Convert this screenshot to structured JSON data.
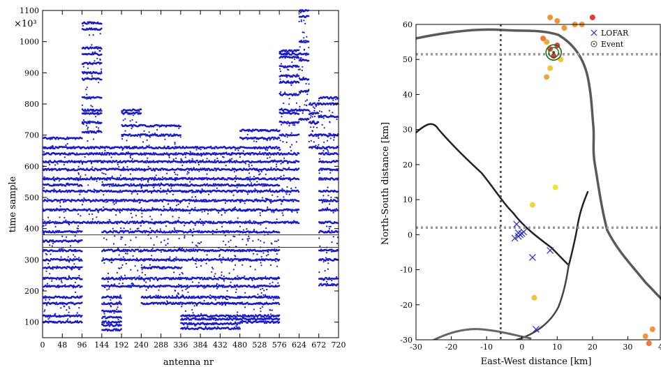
{
  "chart_data": [
    {
      "type": "scatter",
      "xlabel": "antenna nr",
      "ylabel": "time sample",
      "y_multiplier": "×10³",
      "xlim": [
        0,
        720
      ],
      "ylim": [
        50,
        1100
      ],
      "x_ticks": [
        "0",
        "48",
        "96",
        "144",
        "192",
        "240",
        "288",
        "336",
        "384",
        "432",
        "480",
        "528",
        "576",
        "624",
        "672",
        "720"
      ],
      "y_ticks": [
        "100",
        "200",
        "300",
        "400",
        "500",
        "600",
        "700",
        "800",
        "900",
        "1000",
        "1100"
      ],
      "point_color": "#1515d6",
      "horizontal_lines": [
        340,
        380
      ],
      "band_levels": [
        100,
        120,
        160,
        180,
        215,
        240,
        275,
        300,
        330,
        360,
        390,
        420,
        460,
        490,
        520,
        540,
        560,
        590,
        615,
        640,
        660
      ],
      "antenna_groups": [
        {
          "x": [
            0,
            96
          ],
          "levels": [
            100,
            120,
            160,
            180,
            215,
            240,
            275,
            300,
            330,
            360,
            390,
            420,
            460,
            490,
            520,
            540,
            560,
            590,
            615,
            640,
            660,
            690
          ]
        },
        {
          "x": [
            96,
            144
          ],
          "levels": [
            710,
            740,
            770,
            780,
            820,
            880,
            900,
            930,
            960,
            980,
            1040,
            1060,
            420,
            460,
            490,
            520,
            560,
            590,
            615,
            640,
            660
          ]
        },
        {
          "x": [
            144,
            192
          ],
          "levels": [
            75,
            90,
            100,
            115,
            135,
            160,
            180,
            215,
            240,
            300,
            330,
            390,
            420,
            460,
            490,
            520,
            540,
            560,
            590,
            615,
            640,
            660
          ]
        },
        {
          "x": [
            192,
            240
          ],
          "levels": [
            700,
            730,
            770,
            780,
            215,
            240,
            300,
            330,
            390,
            420,
            460,
            490,
            520,
            540,
            560,
            590,
            615,
            640,
            660
          ]
        },
        {
          "x": [
            240,
            336
          ],
          "levels": [
            160,
            180,
            215,
            240,
            275,
            300,
            330,
            390,
            420,
            460,
            490,
            520,
            540,
            560,
            590,
            615,
            640,
            660,
            700,
            730
          ]
        },
        {
          "x": [
            336,
            480
          ],
          "levels": [
            80,
            95,
            110,
            120,
            160,
            180,
            215,
            240,
            300,
            330,
            390,
            420,
            460,
            490,
            520,
            540,
            560,
            590,
            615,
            640,
            660
          ]
        },
        {
          "x": [
            480,
            576
          ],
          "levels": [
            100,
            110,
            120,
            160,
            180,
            215,
            240,
            300,
            330,
            390,
            420,
            460,
            490,
            520,
            540,
            560,
            590,
            615,
            640,
            660,
            690,
            715
          ]
        },
        {
          "x": [
            576,
            624
          ],
          "levels": [
            700,
            740,
            770,
            780,
            830,
            870,
            890,
            920,
            950,
            960,
            970,
            420,
            460,
            490,
            520,
            560,
            590,
            615,
            640
          ]
        },
        {
          "x": [
            624,
            648
          ],
          "levels": [
            750,
            780,
            840,
            880,
            940,
            960,
            1000,
            1080,
            1100
          ]
        },
        {
          "x": [
            648,
            672
          ],
          "levels": [
            660,
            700,
            740,
            770,
            800
          ]
        },
        {
          "x": [
            672,
            720
          ],
          "levels": [
            220,
            240,
            300,
            330,
            390,
            420,
            460,
            490,
            520,
            560,
            590,
            615,
            640,
            660,
            700,
            760,
            800,
            820
          ]
        }
      ]
    },
    {
      "type": "scatter",
      "xlabel": "East-West distance [km]",
      "ylabel": "North-South distance [km]",
      "xlim": [
        -30,
        40
      ],
      "ylim": [
        -30,
        60
      ],
      "x_ticks": [
        "-30",
        "-20",
        "-10",
        "0",
        "10",
        "20",
        "30",
        "40"
      ],
      "y_ticks": [
        "-30",
        "-20",
        "-10",
        "0",
        "10",
        "20",
        "30",
        "40",
        "50",
        "60"
      ],
      "legend": {
        "position": "top-right",
        "entries": [
          {
            "label": "LOFAR",
            "marker": "x",
            "color": "#2a2ad0"
          },
          {
            "label": "Event",
            "marker": "circle-dot",
            "color": "#1a6a1a"
          }
        ]
      },
      "lofar_stations": [
        {
          "x": -1.5,
          "y": 3
        },
        {
          "x": -2,
          "y": -1
        },
        {
          "x": -1,
          "y": 0.5
        },
        {
          "x": -0.5,
          "y": 0
        },
        {
          "x": 0,
          "y": 0.3
        },
        {
          "x": -1,
          "y": -0.5
        },
        {
          "x": 0.5,
          "y": 0.8
        },
        {
          "x": 3,
          "y": -6.5
        },
        {
          "x": 8,
          "y": -4.5
        },
        {
          "x": 4,
          "y": -27
        }
      ],
      "event": {
        "x": 9,
        "y": 52
      },
      "dashed_lines": {
        "x": -6,
        "y": [
          51.5,
          2
        ]
      },
      "colored_points": [
        {
          "x": 20,
          "y": 62,
          "color": "#e82020"
        },
        {
          "x": 8,
          "y": 62,
          "color": "#f08a20"
        },
        {
          "x": 10,
          "y": 61,
          "color": "#f08a20"
        },
        {
          "x": 12,
          "y": 59,
          "color": "#f08a20"
        },
        {
          "x": 15,
          "y": 60,
          "color": "#f08a20"
        },
        {
          "x": 17,
          "y": 60,
          "color": "#f08a20"
        },
        {
          "x": 6,
          "y": 56,
          "color": "#f06a20"
        },
        {
          "x": 7,
          "y": 55,
          "color": "#f0a020"
        },
        {
          "x": 8,
          "y": 53,
          "color": "#e83a20"
        },
        {
          "x": 10,
          "y": 54,
          "color": "#e82020"
        },
        {
          "x": 9,
          "y": 51,
          "color": "#e82020"
        },
        {
          "x": 11,
          "y": 50,
          "color": "#f0c020"
        },
        {
          "x": 8,
          "y": 47.5,
          "color": "#f0c020"
        },
        {
          "x": 7,
          "y": 45,
          "color": "#f0a020"
        },
        {
          "x": 9.5,
          "y": 13.5,
          "color": "#f0e020"
        },
        {
          "x": 3,
          "y": 8.5,
          "color": "#f0d020"
        },
        {
          "x": 3.5,
          "y": -18,
          "color": "#f0c020"
        },
        {
          "x": 37,
          "y": -27,
          "color": "#f08a20"
        },
        {
          "x": 35,
          "y": -29,
          "color": "#f08a20"
        },
        {
          "x": 36,
          "y": -31,
          "color": "#f06a20"
        }
      ]
    }
  ]
}
